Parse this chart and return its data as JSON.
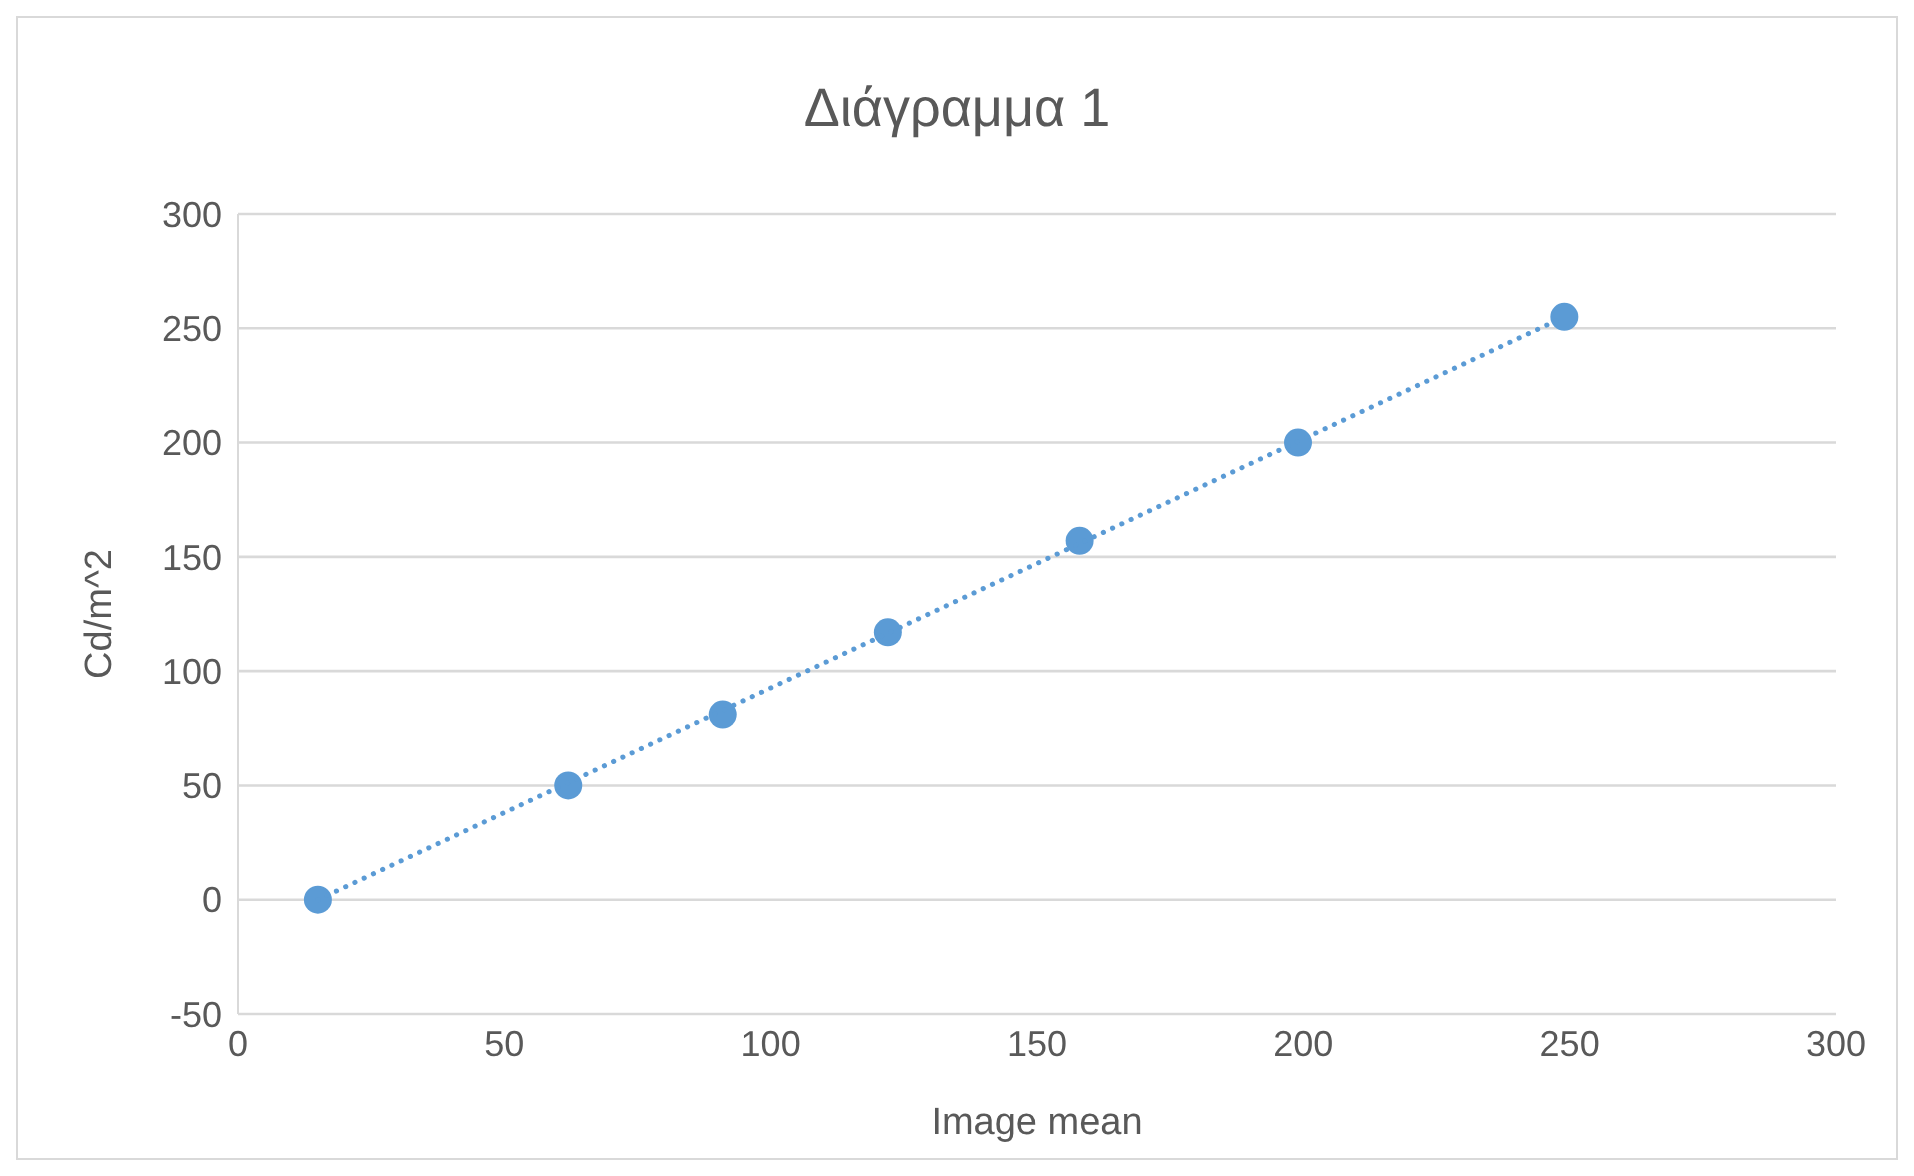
{
  "chart_data": {
    "type": "scatter",
    "title": "Διάγραμμα 1",
    "xlabel": "Image mean",
    "ylabel": "Cd/m^2",
    "xlim": [
      0,
      300
    ],
    "xticks": [
      0,
      50,
      100,
      150,
      200,
      250,
      300
    ],
    "ylim": [
      -50,
      300
    ],
    "yticks": [
      -50,
      0,
      50,
      100,
      150,
      200,
      250,
      300
    ],
    "grid": "y",
    "marker": "circle",
    "series": [
      {
        "color": "#5b9bd5",
        "x": [
          15,
          62,
          91,
          122,
          158,
          199,
          249
        ],
        "values": [
          0,
          50,
          81,
          117,
          157,
          200,
          255
        ]
      },
      {
        "type": "line",
        "color": "#5b9bd5",
        "line_style": "dotted",
        "marker": "none",
        "x": [
          15,
          249
        ],
        "values": [
          0,
          255
        ]
      }
    ]
  }
}
